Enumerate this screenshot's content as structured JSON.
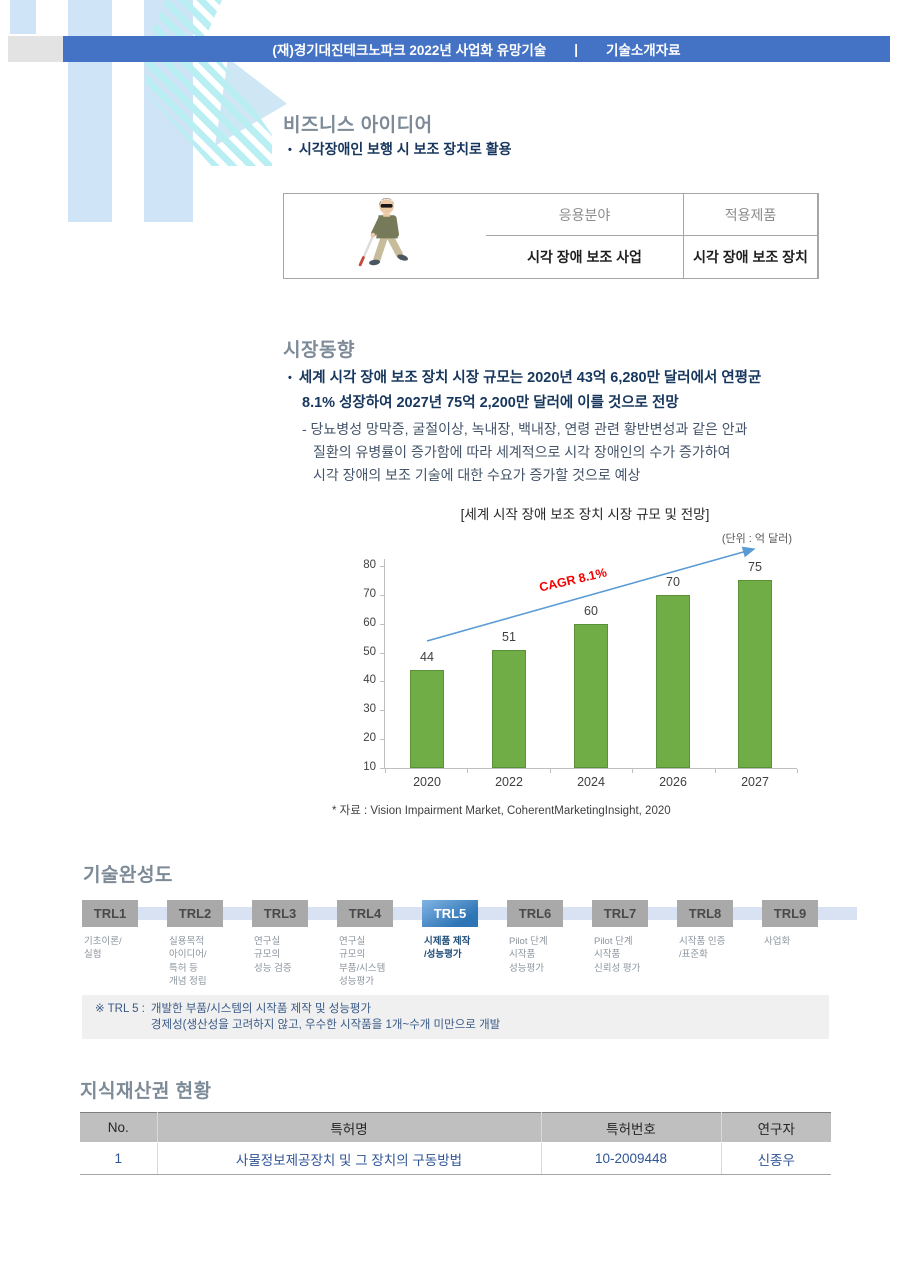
{
  "header": {
    "title_left": "(재)경기대진테크노파크 2022년 사업화 유망기술",
    "divider": "|",
    "title_right": "기술소개자료"
  },
  "business_idea": {
    "heading": "비즈니스 아이디어",
    "bullet_marker": "•",
    "bullet": "시각장애인 보행 시 보조 장치로 활용",
    "table": {
      "headers": [
        "응용분야",
        "적용제품"
      ],
      "row": [
        "시각 장애 보조 사업",
        "시각 장애 보조 장치"
      ],
      "image": "blind-person-walking-with-white-cane"
    }
  },
  "market_trends": {
    "heading": "시장동향",
    "bullet_marker": "•",
    "bullet_lines": [
      "세계 시각 장애 보조 장치 시장 규모는 2020년 43억 6,280만 달러에서 연평균",
      "8.1% 성장하여 2027년 75억 2,200만 달러에 이를 것으로 전망"
    ],
    "sub_lines": [
      "- 당뇨병성 망막증, 굴절이상, 녹내장, 백내장, 연령 관련 황반변성과 같은 안과",
      "질환의 유병률이 증가함에 따라 세계적으로 시각 장애인의 수가 증가하여",
      "시각 장애의 보조 기술에 대한 수요가 증가할 것으로 예상"
    ],
    "source": "* 자료 : Vision Impairment Market, CoherentMarketingInsight, 2020"
  },
  "chart_data": {
    "type": "bar",
    "title": "[세계 시작 장애 보조 장치 시장 규모 및 전망]",
    "unit_label": "(단위 : 억 달러)",
    "categories": [
      "2020",
      "2022",
      "2024",
      "2026",
      "2027"
    ],
    "values": [
      44,
      51,
      60,
      70,
      75
    ],
    "annotation": "CAGR 8.1%",
    "y_ticks": [
      10,
      20,
      30,
      40,
      50,
      60,
      70,
      80
    ],
    "ylim": [
      10,
      80
    ],
    "grid": false,
    "bar_color": "#70ad47",
    "annotation_color": "#f40000",
    "arrow_color": "#5b9bd5"
  },
  "trl": {
    "heading": "기술완성도",
    "levels": [
      {
        "label": "TRL1",
        "desc": "기초이론/\n실험",
        "active": false
      },
      {
        "label": "TRL2",
        "desc": "실용목적\n아이디어/\n특허 등\n개념 정립",
        "active": false
      },
      {
        "label": "TRL3",
        "desc": "연구실\n규모의\n성능 검증",
        "active": false
      },
      {
        "label": "TRL4",
        "desc": "연구실\n규모의\n부품/시스템\n성능평가",
        "active": false
      },
      {
        "label": "TRL5",
        "desc": "시제품 제작\n/성능평가",
        "active": true
      },
      {
        "label": "TRL6",
        "desc": "Pilot 단계\n시작품\n성능평가",
        "active": false
      },
      {
        "label": "TRL7",
        "desc": "Pilot 단계\n시작품\n신뢰성 평가",
        "active": false
      },
      {
        "label": "TRL8",
        "desc": "시작품 인증\n/표준화",
        "active": false
      },
      {
        "label": "TRL9",
        "desc": "사업화",
        "active": false
      }
    ],
    "note_prefix": "※ TRL 5 :",
    "note_lines": [
      "개발한 부품/시스템의 시작품 제작 및 성능평가",
      "경제성(생산성을 고려하지 않고, 우수한 시작품을 1개~수개 미만으로 개발"
    ]
  },
  "ip": {
    "heading": "지식재산권 현황",
    "table": {
      "headers": [
        "No.",
        "특허명",
        "특허번호",
        "연구자"
      ],
      "rows": [
        [
          "1",
          "사물정보제공장치 및 그 장치의 구동방법",
          "10-2009448",
          "신종우"
        ]
      ]
    }
  }
}
